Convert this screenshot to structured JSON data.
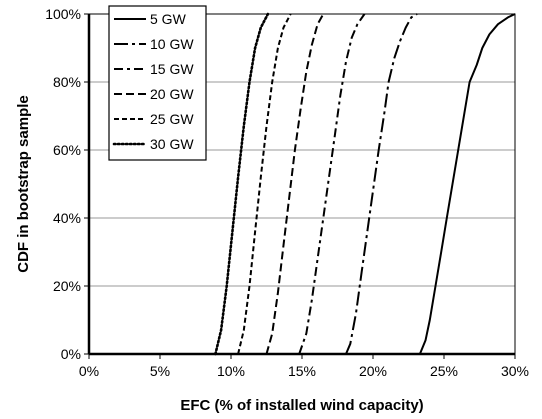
{
  "chart_data": {
    "type": "line",
    "xlabel": "EFC (% of installed wind capacity)",
    "ylabel": "CDF in bootstrap sample",
    "xlim": [
      0,
      30
    ],
    "ylim": [
      0,
      100
    ],
    "x_tick_labels": [
      "0%",
      "5%",
      "10%",
      "15%",
      "20%",
      "25%",
      "30%"
    ],
    "y_tick_labels": [
      "0%",
      "20%",
      "40%",
      "60%",
      "80%",
      "100%"
    ],
    "grid": "horizontal",
    "legend_position": "top-left",
    "series": [
      {
        "name": "5 GW",
        "dash": "solid",
        "x": [
          23.3,
          23.7,
          24.0,
          24.4,
          24.8,
          25.2,
          25.6,
          26.0,
          26.4,
          26.8,
          27.3,
          27.7,
          28.2,
          28.8,
          29.5,
          30.0
        ],
        "y": [
          0,
          4,
          10,
          20,
          30,
          40,
          50,
          60,
          70,
          80,
          85,
          90,
          94,
          97,
          99,
          100
        ]
      },
      {
        "name": "10 GW",
        "dash": "long-dash-dot",
        "x": [
          18.1,
          18.4,
          18.8,
          19.2,
          19.6,
          20.0,
          20.4,
          20.8,
          21.1,
          21.5,
          21.9,
          22.3,
          22.7,
          23.1
        ],
        "y": [
          0,
          3,
          12,
          24,
          36,
          48,
          60,
          71,
          80,
          87,
          92,
          96,
          99,
          100
        ]
      },
      {
        "name": "15 GW",
        "dash": "dash-dot",
        "x": [
          14.8,
          15.3,
          15.7,
          16.1,
          16.5,
          16.9,
          17.3,
          17.7,
          18.1,
          18.5,
          18.9,
          19.4
        ],
        "y": [
          0,
          6,
          16,
          28,
          40,
          52,
          64,
          76,
          86,
          93,
          97,
          100
        ]
      },
      {
        "name": "20 GW",
        "dash": "dash",
        "x": [
          12.5,
          12.9,
          13.3,
          13.7,
          14.1,
          14.5,
          14.9,
          15.3,
          15.7,
          16.1,
          16.5
        ],
        "y": [
          0,
          6,
          18,
          32,
          46,
          60,
          72,
          83,
          91,
          97,
          100
        ]
      },
      {
        "name": "25 GW",
        "dash": "short-dash",
        "x": [
          10.5,
          10.9,
          11.3,
          11.7,
          12.1,
          12.5,
          12.9,
          13.3,
          13.7,
          14.2
        ],
        "y": [
          0,
          7,
          20,
          36,
          52,
          67,
          80,
          90,
          96,
          100
        ]
      },
      {
        "name": "30 GW",
        "dash": "dot",
        "x": [
          8.9,
          9.3,
          9.7,
          10.1,
          10.5,
          10.9,
          11.3,
          11.7,
          12.1,
          12.6
        ],
        "y": [
          0,
          7,
          20,
          36,
          52,
          67,
          80,
          90,
          96,
          100
        ]
      }
    ]
  }
}
